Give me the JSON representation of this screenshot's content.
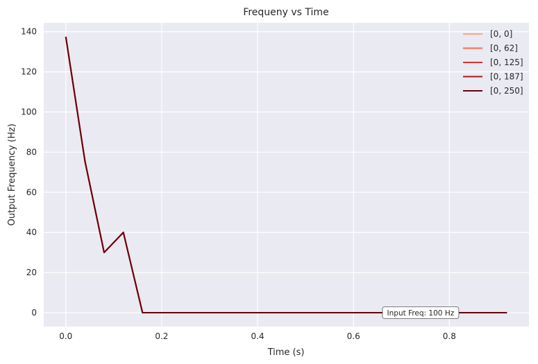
{
  "chart_data": {
    "type": "line",
    "title": "Frequeny vs Time",
    "xlabel": "Time (s)",
    "ylabel": "Output Frequency (Hz)",
    "xlim": [
      -0.046,
      0.966
    ],
    "ylim": [
      -6.9,
      144.4
    ],
    "xticks": [
      0.0,
      0.2,
      0.4,
      0.6,
      0.8
    ],
    "xtick_labels": [
      "0.0",
      "0.2",
      "0.4",
      "0.6",
      "0.8"
    ],
    "yticks": [
      0,
      20,
      40,
      60,
      80,
      100,
      120,
      140
    ],
    "ytick_labels": [
      "0",
      "20",
      "40",
      "60",
      "80",
      "100",
      "120",
      "140"
    ],
    "grid": true,
    "legend_position": "top-right",
    "background": "#eaeaf2",
    "x": [
      0.0,
      0.04,
      0.08,
      0.12,
      0.16,
      0.2,
      0.24,
      0.28,
      0.32,
      0.36,
      0.4,
      0.44,
      0.48,
      0.52,
      0.56,
      0.6,
      0.64,
      0.68,
      0.72,
      0.76,
      0.8,
      0.84,
      0.88,
      0.92
    ],
    "series": [
      {
        "name": "[0, 0]",
        "color": "#fca486",
        "values": [
          137.5,
          75.5,
          30.0,
          40.0,
          0,
          0,
          0,
          0,
          0,
          0,
          0,
          0,
          0,
          0,
          0,
          0,
          0,
          0,
          0,
          0,
          0,
          0,
          0,
          0
        ]
      },
      {
        "name": "[0, 62]",
        "color": "#fb6a4a",
        "values": [
          137.5,
          75.5,
          30.0,
          40.0,
          0,
          0,
          0,
          0,
          0,
          0,
          0,
          0,
          0,
          0,
          0,
          0,
          0,
          0,
          0,
          0,
          0,
          0,
          0,
          0
        ]
      },
      {
        "name": "[0, 125]",
        "color": "#e32f27",
        "values": [
          137.5,
          75.5,
          30.0,
          40.0,
          0,
          0,
          0,
          0,
          0,
          0,
          0,
          0,
          0,
          0,
          0,
          0,
          0,
          0,
          0,
          0,
          0,
          0,
          0,
          0
        ]
      },
      {
        "name": "[0, 187]",
        "color": "#b11218",
        "values": [
          137.5,
          75.5,
          30.0,
          40.0,
          0,
          0,
          0,
          0,
          0,
          0,
          0,
          0,
          0,
          0,
          0,
          0,
          0,
          0,
          0,
          0,
          0,
          0,
          0,
          0
        ]
      },
      {
        "name": "[0, 250]",
        "color": "#67000d",
        "values": [
          137.5,
          75.5,
          30.0,
          40.0,
          0,
          0,
          0,
          0,
          0,
          0,
          0,
          0,
          0,
          0,
          0,
          0,
          0,
          0,
          0,
          0,
          0,
          0,
          0,
          0
        ]
      }
    ],
    "annotation": {
      "text": "Input Freq: 100 Hz",
      "x": 0.74,
      "y": 0
    }
  }
}
